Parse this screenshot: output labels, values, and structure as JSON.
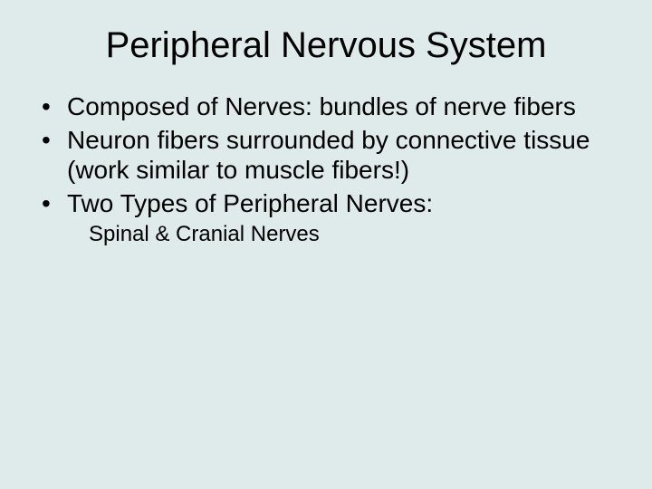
{
  "slide": {
    "background_color": "#dfeaea",
    "text_color": "#000000",
    "title": {
      "text": "Peripheral Nervous System",
      "fontsize": 40,
      "fontweight": "normal"
    },
    "body_fontsize": 28,
    "body_lineheight": 1.18,
    "sub_fontsize": 24,
    "bullets": [
      "Composed of Nerves: bundles of nerve fibers",
      "Neuron fibers surrounded by connective tissue (work similar to muscle fibers!)",
      "Two Types of Peripheral Nerves:"
    ],
    "subitems": [
      "Spinal & Cranial Nerves"
    ]
  }
}
